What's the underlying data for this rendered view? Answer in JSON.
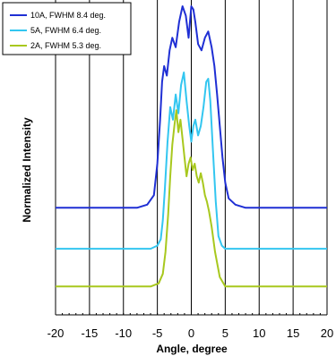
{
  "chart_data": {
    "type": "line",
    "xlabel": "Angle, degree",
    "ylabel": "Normalized Intensity",
    "xlim": [
      -20,
      20
    ],
    "xticks": [
      -20,
      -15,
      -10,
      -5,
      0,
      5,
      10,
      15,
      20
    ],
    "y_tick_labels": false,
    "grid": "vertical",
    "legend_position": "top-left",
    "series": [
      {
        "name": "10A, FWHM 8.4 deg.",
        "color": "#1f2fd4",
        "x": [
          -20,
          -8,
          -6.5,
          -5.5,
          -5,
          -4.6,
          -4.3,
          -4,
          -3.6,
          -3.2,
          -2.8,
          -2.3,
          -1.8,
          -1.3,
          -0.8,
          -0.4,
          0,
          0.3,
          0.6,
          1,
          1.5,
          2,
          2.5,
          3,
          3.4,
          3.8,
          4.2,
          4.6,
          5,
          5.5,
          6.5,
          8,
          20
        ],
        "y": [
          0.34,
          0.34,
          0.35,
          0.38,
          0.48,
          0.62,
          0.74,
          0.79,
          0.76,
          0.84,
          0.88,
          0.85,
          0.93,
          0.98,
          0.95,
          0.88,
          0.98,
          0.97,
          0.93,
          0.86,
          0.84,
          0.88,
          0.9,
          0.85,
          0.79,
          0.7,
          0.6,
          0.5,
          0.42,
          0.37,
          0.35,
          0.34,
          0.34
        ]
      },
      {
        "name": "5A, FWHM 6.4 deg.",
        "color": "#33c6f0",
        "x": [
          -20,
          -6,
          -5,
          -4.5,
          -4.2,
          -3.9,
          -3.5,
          -3.1,
          -2.7,
          -2.3,
          -1.9,
          -1.5,
          -1.1,
          -0.7,
          -0.3,
          0,
          0.3,
          0.6,
          1,
          1.4,
          1.8,
          2.2,
          2.5,
          2.8,
          3.2,
          3.6,
          4,
          4.5,
          5,
          6,
          20
        ],
        "y": [
          0.21,
          0.21,
          0.22,
          0.24,
          0.3,
          0.4,
          0.55,
          0.66,
          0.62,
          0.7,
          0.64,
          0.73,
          0.77,
          0.68,
          0.6,
          0.55,
          0.6,
          0.62,
          0.57,
          0.6,
          0.66,
          0.74,
          0.75,
          0.68,
          0.52,
          0.36,
          0.25,
          0.22,
          0.21,
          0.21,
          0.21
        ]
      },
      {
        "name": "2A, FWHM 5.3 deg.",
        "color": "#a8c81e",
        "x": [
          -20,
          -6,
          -4.8,
          -4.2,
          -3.8,
          -3.4,
          -3.1,
          -2.8,
          -2.5,
          -2.2,
          -1.9,
          -1.6,
          -1.3,
          -1,
          -0.7,
          -0.4,
          -0.1,
          0.2,
          0.5,
          0.8,
          1.1,
          1.4,
          1.7,
          2,
          2.3,
          2.6,
          3,
          3.5,
          4.2,
          5,
          6,
          20
        ],
        "y": [
          0.09,
          0.09,
          0.1,
          0.13,
          0.2,
          0.32,
          0.44,
          0.54,
          0.6,
          0.65,
          0.58,
          0.62,
          0.56,
          0.5,
          0.44,
          0.48,
          0.5,
          0.46,
          0.48,
          0.44,
          0.42,
          0.45,
          0.42,
          0.38,
          0.36,
          0.33,
          0.28,
          0.2,
          0.12,
          0.09,
          0.09,
          0.09
        ]
      }
    ]
  }
}
